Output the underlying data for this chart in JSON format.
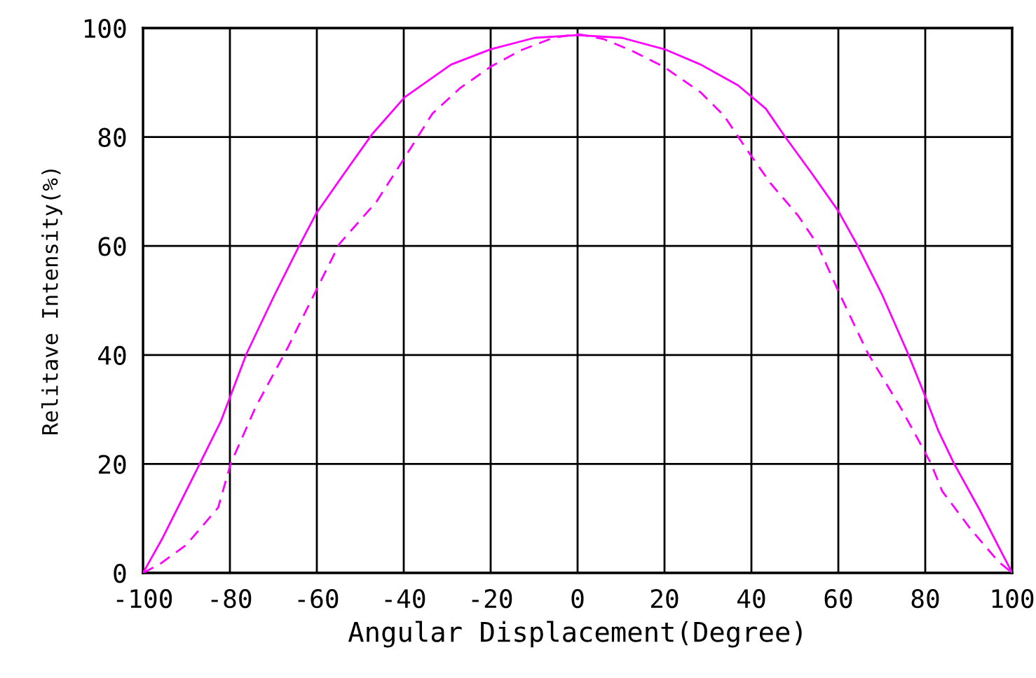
{
  "chart_data": {
    "type": "line",
    "xlabel": "Angular Displacement(Degree)",
    "ylabel": "Relitave Intensity(%)",
    "xlim": [
      -100,
      100
    ],
    "ylim": [
      0,
      100
    ],
    "xticks": [
      -100,
      -80,
      -60,
      -40,
      -20,
      0,
      20,
      40,
      60,
      80,
      100
    ],
    "yticks": [
      0,
      20,
      40,
      60,
      80,
      100
    ],
    "grid": true,
    "legend": false,
    "marker": "none",
    "series": [
      {
        "color": "#ff00ff",
        "line_style": "solid",
        "x": [
          -100,
          -95.5,
          -86.9,
          -82.1,
          -76.2,
          -69.8,
          -64.4,
          -60.2,
          -53.8,
          -47.3,
          -39.8,
          -29.1,
          -20,
          -9.9,
          0,
          10.2,
          20,
          28.3,
          36.9,
          43.3,
          47.6,
          54,
          60,
          64.2,
          70.1,
          76,
          79.7,
          83,
          86.6,
          92.5,
          100
        ],
        "values": [
          0,
          6.4,
          20.1,
          27.8,
          40.2,
          50.9,
          59.5,
          65.9,
          73.2,
          80.5,
          87.3,
          93.3,
          96.1,
          98.2,
          98.7,
          98.2,
          96.1,
          93.3,
          89.5,
          85.2,
          80.2,
          73.2,
          66.4,
          60.4,
          51,
          40.3,
          33,
          26.1,
          20.1,
          11.6,
          0
        ]
      },
      {
        "color": "#ff00ff",
        "line_style": "dashed",
        "x": [
          -100,
          -96,
          -90.1,
          -82.7,
          -79.8,
          -74.1,
          -66.6,
          -60.2,
          -54.8,
          -46.3,
          -39.8,
          -33.4,
          -27,
          -20,
          -13.1,
          -5.6,
          0,
          5.9,
          12.3,
          19.8,
          28.3,
          33.7,
          39.1,
          44.4,
          50.8,
          55.1,
          60.4,
          66.8,
          74.3,
          78.4,
          81.3,
          83.9,
          90.4,
          96.8,
          100
        ],
        "values": [
          0,
          1.7,
          5.1,
          12,
          20.1,
          30.4,
          41.5,
          51.8,
          60.4,
          68.1,
          76.2,
          84.3,
          89,
          92.9,
          95.9,
          98.2,
          98.9,
          98,
          95.9,
          92.9,
          88.2,
          83.9,
          77.5,
          71.5,
          65.5,
          60.4,
          51,
          40.3,
          30.4,
          24.4,
          20.1,
          15,
          8.1,
          2.1,
          0
        ]
      }
    ]
  }
}
